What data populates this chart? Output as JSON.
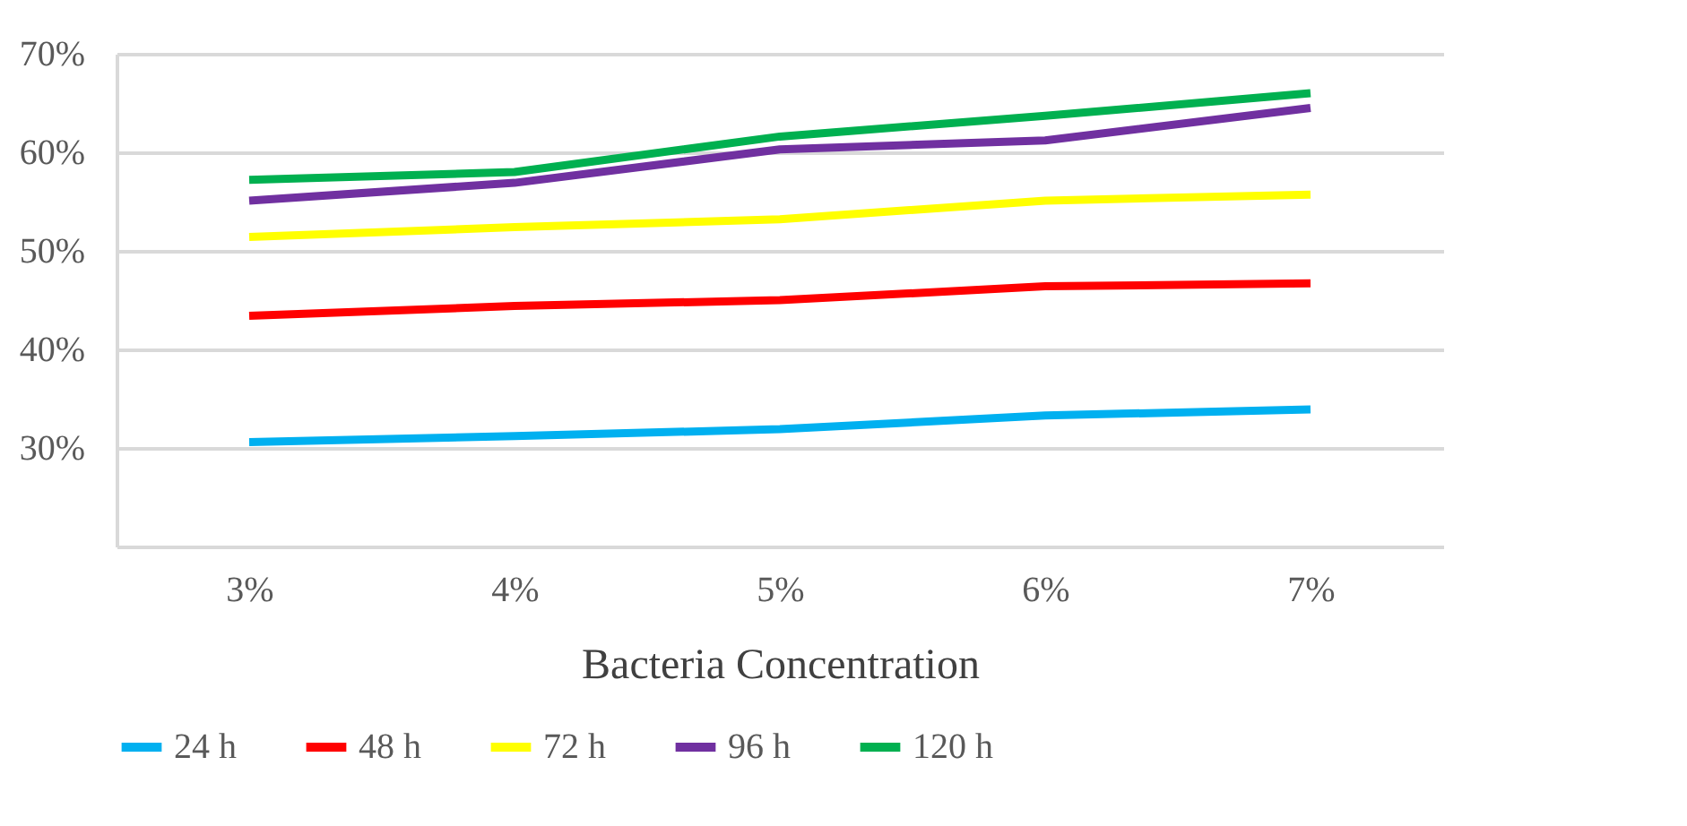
{
  "chart_data": {
    "type": "line",
    "xlabel": "Bacteria Concentration",
    "categories": [
      "3%",
      "4%",
      "5%",
      "6%",
      "7%"
    ],
    "series": [
      {
        "name": "24 h",
        "color": "#00b0f0",
        "values": [
          30.6,
          31.2,
          31.9,
          33.3,
          33.9
        ]
      },
      {
        "name": "48 h",
        "color": "#ff0000",
        "values": [
          43.4,
          44.4,
          45.0,
          46.4,
          46.7
        ]
      },
      {
        "name": "72 h",
        "color": "#ffff00",
        "values": [
          51.4,
          52.4,
          53.2,
          55.1,
          55.7
        ]
      },
      {
        "name": "96 h",
        "color": "#7030a0",
        "values": [
          55.1,
          56.9,
          60.3,
          61.2,
          64.5
        ]
      },
      {
        "name": "120 h",
        "color": "#00b050",
        "values": [
          57.2,
          58.0,
          61.6,
          63.7,
          66.0
        ]
      }
    ],
    "ylim": [
      20,
      70
    ],
    "yticks": [
      {
        "value": 20,
        "label": null
      },
      {
        "value": 30,
        "label": "30%"
      },
      {
        "value": 40,
        "label": "40%"
      },
      {
        "value": 50,
        "label": "50%"
      },
      {
        "value": 60,
        "label": "60%"
      },
      {
        "value": 70,
        "label": "70%"
      }
    ],
    "grid": "y",
    "legend": "bottom",
    "marker": "none",
    "line_style": "solid"
  }
}
